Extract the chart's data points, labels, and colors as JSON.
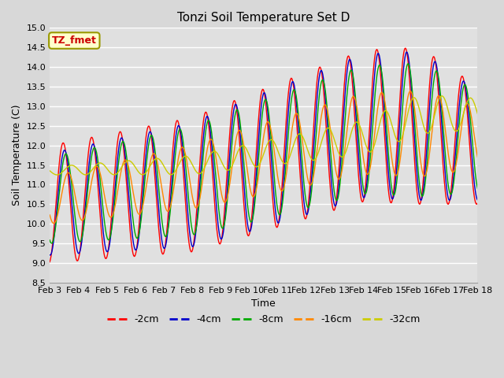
{
  "title": "Tonzi Soil Temperature Set D",
  "xlabel": "Time",
  "ylabel": "Soil Temperature (C)",
  "ylim": [
    8.5,
    15.0
  ],
  "legend_label": "TZ_fmet",
  "series_colors": {
    "-2cm": "#ff0000",
    "-4cm": "#0000cc",
    "-8cm": "#00aa00",
    "-16cm": "#ff8800",
    "-32cm": "#cccc00"
  },
  "series_names": [
    "-2cm",
    "-4cm",
    "-8cm",
    "-16cm",
    "-32cm"
  ],
  "figwidth": 6.4,
  "figheight": 4.8,
  "dpi": 100
}
